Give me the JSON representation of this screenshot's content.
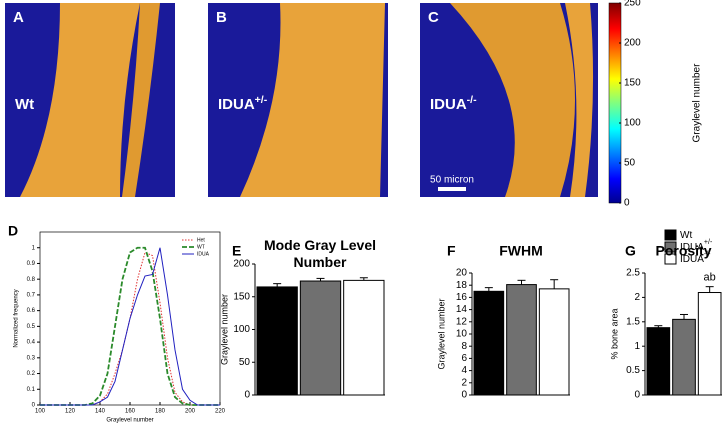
{
  "images": [
    {
      "letter": "A",
      "label": "Wt"
    },
    {
      "letter": "B",
      "label": "IDUA",
      "label_sup": "+/-"
    },
    {
      "letter": "C",
      "label": "IDUA",
      "label_sup": "-/-"
    }
  ],
  "scale_bar": "50 micron",
  "colorbar": {
    "label": "Graylevel number",
    "lim": [
      0,
      250
    ],
    "ticks": [
      0,
      50,
      100,
      150,
      200,
      250
    ]
  },
  "legend": [
    {
      "name": "Wt",
      "color": "#000000"
    },
    {
      "name": "IDUA",
      "sup": "+/-",
      "color": "#707070"
    },
    {
      "name": "IDUA",
      "sup": "-/-",
      "color": "#ffffff"
    }
  ],
  "chart_data": [
    {
      "type": "line",
      "letter": "D",
      "xlabel": "Graylevel number",
      "ylabel": "Normalized frequency",
      "x": [
        100,
        105,
        110,
        115,
        120,
        125,
        130,
        135,
        140,
        145,
        150,
        155,
        160,
        165,
        170,
        175,
        180,
        185,
        190,
        195,
        200,
        205,
        210,
        215,
        220
      ],
      "series": [
        {
          "name": "Het",
          "color": "#e03030",
          "dash": "1.5 1.5",
          "values": [
            0,
            0,
            0,
            0,
            0,
            0,
            0,
            0,
            0.02,
            0.07,
            0.2,
            0.35,
            0.55,
            0.8,
            0.97,
            0.95,
            0.65,
            0.3,
            0.08,
            0.02,
            0,
            0,
            0,
            0,
            0
          ]
        },
        {
          "name": "WT",
          "color": "#2a8a2a",
          "dash": "5 2",
          "values": [
            0,
            0,
            0,
            0,
            0,
            0,
            0,
            0.01,
            0.06,
            0.2,
            0.5,
            0.8,
            0.97,
            1,
            1,
            0.85,
            0.55,
            0.2,
            0.05,
            0.01,
            0,
            0,
            0,
            0,
            0
          ]
        },
        {
          "name": "IDUA",
          "color": "#2020c0",
          "dash": "",
          "values": [
            0,
            0,
            0,
            0,
            0,
            0,
            0,
            0,
            0.02,
            0.05,
            0.15,
            0.35,
            0.55,
            0.7,
            0.82,
            0.83,
            1,
            0.7,
            0.35,
            0.1,
            0.03,
            0,
            0,
            0,
            0
          ]
        }
      ],
      "xlim": [
        100,
        220
      ],
      "xticks": [
        100,
        120,
        140,
        160,
        180,
        200,
        220
      ],
      "ylim": [
        0,
        1.1
      ],
      "yticks": [
        0,
        0.1,
        0.2,
        0.3,
        0.4,
        0.5,
        0.6,
        0.7,
        0.8,
        0.9,
        1
      ]
    },
    {
      "type": "bar",
      "letter": "E",
      "title": "Mode Gray Level Number",
      "ylabel": "Graylevel number",
      "values": [
        165,
        174,
        175
      ],
      "errors": [
        5,
        4,
        4
      ],
      "colors": [
        "#000000",
        "#707070",
        "#ffffff"
      ],
      "ylim": [
        0,
        200
      ],
      "yticks": [
        0,
        50,
        100,
        150,
        200
      ]
    },
    {
      "type": "bar",
      "letter": "F",
      "title": "FWHM",
      "ylabel": "Graylevel number",
      "values": [
        17,
        18.1,
        17.4
      ],
      "errors": [
        0.6,
        0.7,
        1.5
      ],
      "colors": [
        "#000000",
        "#707070",
        "#ffffff"
      ],
      "ylim": [
        0,
        20
      ],
      "yticks": [
        0,
        2,
        4,
        6,
        8,
        10,
        12,
        14,
        16,
        18,
        20
      ]
    },
    {
      "type": "bar",
      "letter": "G",
      "title": "Porosity",
      "ylabel": "% bone area",
      "values": [
        1.38,
        1.55,
        2.1
      ],
      "errors": [
        0.04,
        0.1,
        0.12
      ],
      "colors": [
        "#000000",
        "#707070",
        "#ffffff"
      ],
      "value_annotations": [
        null,
        null,
        "ab"
      ],
      "ylim": [
        0,
        2.5
      ],
      "yticks": [
        0,
        0.5,
        1,
        1.5,
        2,
        2.5
      ]
    }
  ]
}
